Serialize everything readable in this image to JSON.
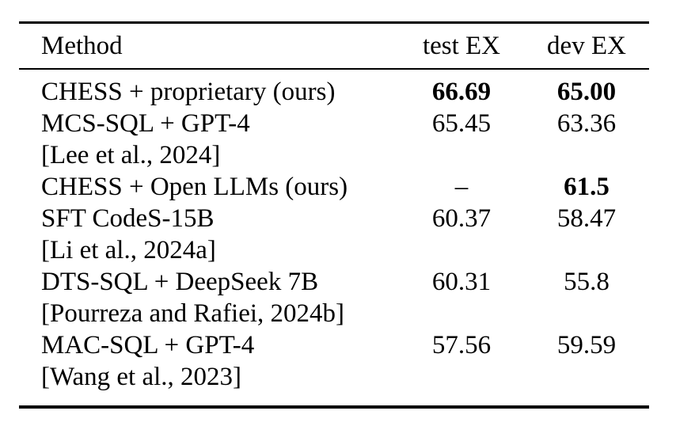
{
  "colors": {
    "background": "#ffffff",
    "text": "#000000",
    "rule": "#000000"
  },
  "table": {
    "columns": {
      "method": "Method",
      "test_ex": "test EX",
      "dev_ex": "dev EX"
    },
    "rows": [
      {
        "method": "CHESS + proprietary (ours)",
        "test_ex": "66.69",
        "dev_ex": "65.00",
        "test_bold": true,
        "dev_bold": true
      },
      {
        "method": "MCS-SQL + GPT-4",
        "test_ex": "65.45",
        "dev_ex": "63.36",
        "test_bold": false,
        "dev_bold": false
      },
      {
        "method": "[Lee et al., 2024]",
        "test_ex": "",
        "dev_ex": "",
        "test_bold": false,
        "dev_bold": false
      },
      {
        "method": "CHESS + Open LLMs (ours)",
        "test_ex": "–",
        "dev_ex": "61.5",
        "test_bold": false,
        "dev_bold": true
      },
      {
        "method": "SFT CodeS-15B",
        "test_ex": "60.37",
        "dev_ex": "58.47",
        "test_bold": false,
        "dev_bold": false
      },
      {
        "method": "[Li et al., 2024a]",
        "test_ex": "",
        "dev_ex": "",
        "test_bold": false,
        "dev_bold": false
      },
      {
        "method": "DTS-SQL + DeepSeek 7B",
        "test_ex": "60.31",
        "dev_ex": "55.8",
        "test_bold": false,
        "dev_bold": false
      },
      {
        "method": "[Pourreza and Rafiei, 2024b]",
        "test_ex": "",
        "dev_ex": "",
        "test_bold": false,
        "dev_bold": false
      },
      {
        "method": "MAC-SQL + GPT-4",
        "test_ex": "57.56",
        "dev_ex": "59.59",
        "test_bold": false,
        "dev_bold": false
      },
      {
        "method": "[Wang et al., 2023]",
        "test_ex": "",
        "dev_ex": "",
        "test_bold": false,
        "dev_bold": false
      }
    ]
  },
  "chart_data": {
    "type": "table",
    "title": "",
    "columns": [
      "Method",
      "test EX",
      "dev EX"
    ],
    "rows": [
      [
        "CHESS + proprietary (ours)",
        66.69,
        65.0
      ],
      [
        "MCS-SQL + GPT-4 [Lee et al., 2024]",
        65.45,
        63.36
      ],
      [
        "CHESS + Open LLMs (ours)",
        null,
        61.5
      ],
      [
        "SFT CodeS-15B [Li et al., 2024a]",
        60.37,
        58.47
      ],
      [
        "DTS-SQL + DeepSeek 7B [Pourreza and Rafiei, 2024b]",
        60.31,
        55.8
      ],
      [
        "MAC-SQL + GPT-4 [Wang et al., 2023]",
        57.56,
        59.59
      ]
    ]
  }
}
